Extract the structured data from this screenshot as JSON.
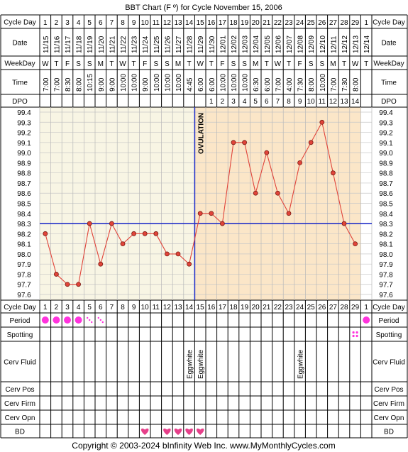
{
  "title": "BBT Chart (F º) for Cycle November 15, 2006",
  "copyright": "Copyright © 2003-2024 bInfinity Web Inc.    www.MyMonthlyCycles.com",
  "row_labels": {
    "cycle_day": "Cycle Day",
    "date": "Date",
    "weekday": "WeekDay",
    "time": "Time",
    "dpo": "DPO",
    "period": "Period",
    "spotting": "Spotting",
    "cerv_fluid": "Cerv Fluid",
    "cerv_pos": "Cerv Pos",
    "cerv_firm": "Cerv Firm",
    "cerv_opn": "Cerv Opn",
    "bd": "BD"
  },
  "ovulation_label": "OVULATION",
  "colors": {
    "grid_pre": "#f8f5e4",
    "grid_post": "#fbe6c8",
    "line": "#e0443a",
    "coverline": "#2330c8",
    "period": "#ff33dd",
    "heart": "#e6408a"
  },
  "chart_data": {
    "type": "line",
    "title": "BBT Chart (F º) for Cycle November 15, 2006",
    "cycle_days": [
      "1",
      "2",
      "3",
      "4",
      "5",
      "6",
      "7",
      "8",
      "9",
      "10",
      "11",
      "12",
      "13",
      "14",
      "15",
      "16",
      "17",
      "18",
      "19",
      "20",
      "21",
      "22",
      "23",
      "24",
      "25",
      "26",
      "27",
      "28",
      "29",
      "1"
    ],
    "dates": [
      "11/15",
      "11/16",
      "11/17",
      "11/18",
      "11/19",
      "11/20",
      "11/21",
      "11/22",
      "11/23",
      "11/24",
      "11/25",
      "11/26",
      "11/27",
      "11/28",
      "11/29",
      "11/30",
      "12/01",
      "12/02",
      "12/03",
      "12/04",
      "12/05",
      "12/06",
      "12/07",
      "12/08",
      "12/09",
      "12/10",
      "12/11",
      "12/12",
      "12/13",
      "12/14"
    ],
    "weekdays": [
      "W",
      "T",
      "F",
      "S",
      "S",
      "M",
      "T",
      "W",
      "T",
      "F",
      "S",
      "S",
      "M",
      "T",
      "W",
      "T",
      "F",
      "S",
      "S",
      "M",
      "T",
      "W",
      "T",
      "F",
      "S",
      "S",
      "M",
      "T",
      "W",
      "T"
    ],
    "times": [
      "7:00",
      "7:00",
      "8:30",
      "8:00",
      "10:15",
      "9:00",
      "9:00",
      "10:00",
      "10:00",
      "9:00",
      "10:00",
      "10:00",
      "10:00",
      "4:45",
      "6:00",
      "6:00",
      "10:00",
      "10:00",
      "10:00",
      "6:30",
      "6:00",
      "7:00",
      "4:00",
      "7:30",
      "8:00",
      "10:00",
      "7:00",
      "7:30",
      "8:00",
      ""
    ],
    "dpo": [
      "",
      "",
      "",
      "",
      "",
      "",
      "",
      "",
      "",
      "",
      "",
      "",
      "",
      "",
      "",
      "1",
      "2",
      "3",
      "4",
      "5",
      "6",
      "7",
      "8",
      "9",
      "10",
      "11",
      "12",
      "13",
      "14",
      ""
    ],
    "temps": [
      98.2,
      97.8,
      97.7,
      97.7,
      98.3,
      97.9,
      98.3,
      98.1,
      98.2,
      98.2,
      98.2,
      98.0,
      98.0,
      97.9,
      98.4,
      98.4,
      98.3,
      99.1,
      99.1,
      98.6,
      99.0,
      98.6,
      98.4,
      98.9,
      99.1,
      99.3,
      98.8,
      98.3,
      98.1,
      null
    ],
    "y_ticks": [
      "99.4",
      "99.3",
      "99.2",
      "99.1",
      "99.0",
      "98.9",
      "98.8",
      "98.7",
      "98.6",
      "98.5",
      "98.4",
      "98.3",
      "98.2",
      "98.1",
      "98.0",
      "97.9",
      "97.8",
      "97.7",
      "97.6"
    ],
    "ylim": [
      97.6,
      99.4
    ],
    "coverline": 98.3,
    "ovulation_day": 15,
    "period": [
      "big",
      "big",
      "big",
      "big",
      "small",
      "small",
      "",
      "",
      "",
      "",
      "",
      "",
      "",
      "",
      "",
      "",
      "",
      "",
      "",
      "",
      "",
      "",
      "",
      "",
      "",
      "",
      "",
      "",
      "",
      "big"
    ],
    "spotting": [
      "",
      "",
      "",
      "",
      "",
      "",
      "",
      "",
      "",
      "",
      "",
      "",
      "",
      "",
      "",
      "",
      "",
      "",
      "",
      "",
      "",
      "",
      "",
      "",
      "",
      "",
      "",
      "",
      "spot",
      ""
    ],
    "cerv_fluid": [
      "",
      "",
      "",
      "",
      "",
      "",
      "",
      "",
      "",
      "",
      "",
      "",
      "",
      "Eggwhite",
      "Eggwhite",
      "",
      "",
      "",
      "",
      "",
      "",
      "",
      "",
      "Eggwhite",
      "",
      "",
      "",
      "",
      "",
      ""
    ],
    "bd": [
      "",
      "",
      "",
      "",
      "",
      "",
      "",
      "",
      "",
      "heart",
      "",
      "heart",
      "heart",
      "heart",
      "heart",
      "",
      "",
      "",
      "",
      "",
      "",
      "",
      "",
      "",
      "",
      "",
      "",
      "",
      "",
      ""
    ]
  }
}
